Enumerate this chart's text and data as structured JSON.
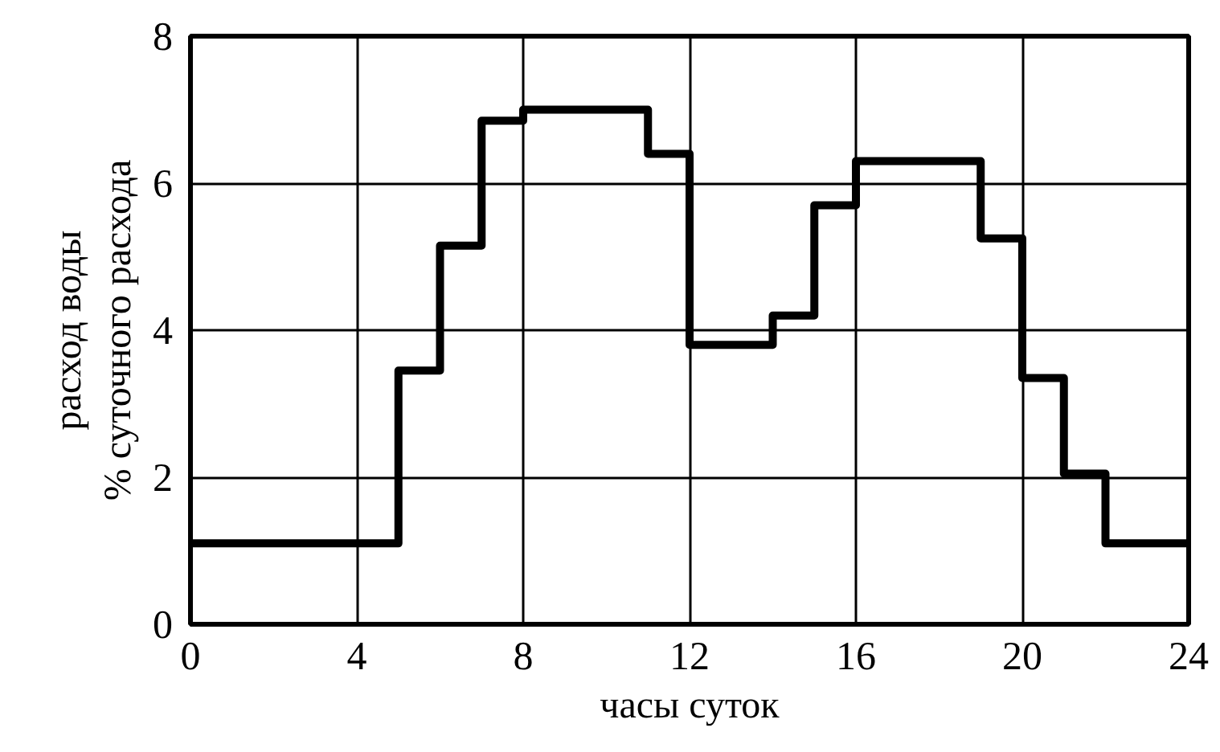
{
  "chart_data": {
    "type": "step",
    "xlabel": "часы суток",
    "ylabel": "расход воды\n% суточного расхода",
    "x": [
      0,
      5,
      6,
      7,
      8,
      11,
      12,
      14,
      15,
      16,
      19,
      20,
      21,
      22,
      24
    ],
    "series": [
      {
        "color": "#000000",
        "values": [
          1.1,
          3.45,
          5.15,
          6.85,
          7.0,
          6.4,
          3.8,
          4.2,
          5.7,
          6.3,
          5.25,
          3.35,
          2.05,
          1.1,
          1.1
        ]
      }
    ],
    "xlim": [
      0,
      24
    ],
    "xticks": [
      0,
      4,
      8,
      12,
      16,
      20,
      24
    ],
    "ylim": [
      0,
      8
    ],
    "yticks": [
      0,
      2,
      4,
      6,
      8
    ],
    "grid": true,
    "marker": "none",
    "line_style": "solid"
  }
}
